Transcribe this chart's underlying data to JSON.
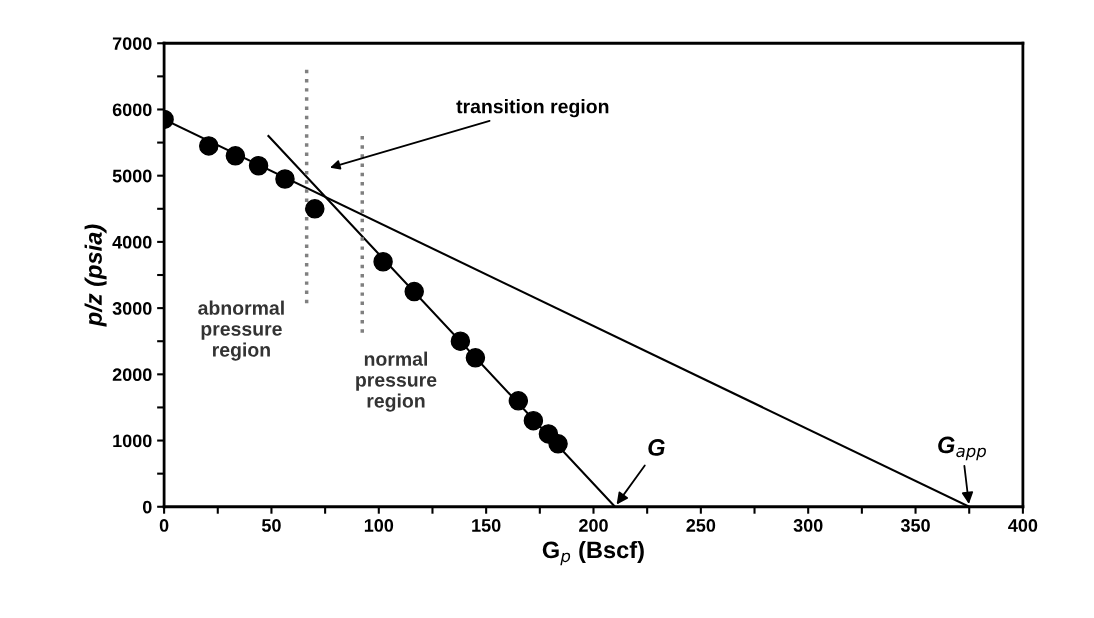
{
  "chart_data": {
    "type": "scatter",
    "xlabel": "G$_{p}$ (Bscf)",
    "ylabel": "p/z (psia)",
    "x": [
      0,
      20.8,
      33.2,
      44,
      56.3,
      70.2,
      102,
      116.5,
      138,
      145,
      165,
      172,
      179,
      183.5
    ],
    "series": [
      {
        "color": "#000000",
        "marker": "circle",
        "values": [
          5850,
          5450,
          5300,
          5150,
          4950,
          4500,
          3700,
          3250,
          2500,
          2250,
          1600,
          1300,
          1100,
          950
        ]
      },
      {
        "type": "line",
        "color": "#000000",
        "line_style": "solid",
        "x": [
          0,
          375
        ],
        "values": [
          5850,
          0
        ]
      },
      {
        "type": "line",
        "color": "#000000",
        "line_style": "solid",
        "x": [
          48.6,
          210
        ],
        "values": [
          5600,
          0
        ]
      },
      {
        "type": "line",
        "color": "#808080",
        "line_style": "dotted",
        "x": [
          66.4,
          66.4
        ],
        "values": [
          6600,
          3030
        ]
      },
      {
        "type": "line",
        "color": "#808080",
        "line_style": "dotted",
        "x": [
          92.3,
          92.3
        ],
        "values": [
          5600,
          2600
        ]
      }
    ],
    "annotations": [
      "transition region",
      "abnormal\npressure\nregion",
      "normal\npressure\nregion",
      {
        "text": "G",
        "x": 210,
        "y": 0
      },
      {
        "text": "G$_{app}$",
        "x": 375,
        "y": 0
      }
    ],
    "xlim": [
      0,
      400
    ],
    "ylim": [
      0,
      7000
    ],
    "xticks": [
      0,
      {
        "value": 25,
        "label": null
      },
      50,
      {
        "value": 75,
        "label": null
      },
      100,
      {
        "value": 125,
        "label": null
      },
      150,
      {
        "value": 175,
        "label": null
      },
      200,
      {
        "value": 225,
        "label": null
      },
      250,
      {
        "value": 275,
        "label": null
      },
      300,
      {
        "value": 325,
        "label": null
      },
      350,
      {
        "value": 375,
        "label": null
      },
      400
    ],
    "yticks": [
      0,
      {
        "value": 500,
        "label": null
      },
      1000,
      {
        "value": 1500,
        "label": null
      },
      2000,
      {
        "value": 2500,
        "label": null
      },
      3000,
      {
        "value": 3500,
        "label": null
      },
      4000,
      {
        "value": 4500,
        "label": null
      },
      5000,
      {
        "value": 5500,
        "label": null
      },
      6000,
      {
        "value": 6500,
        "label": null
      },
      7000
    ],
    "grid": false,
    "legend": false
  }
}
